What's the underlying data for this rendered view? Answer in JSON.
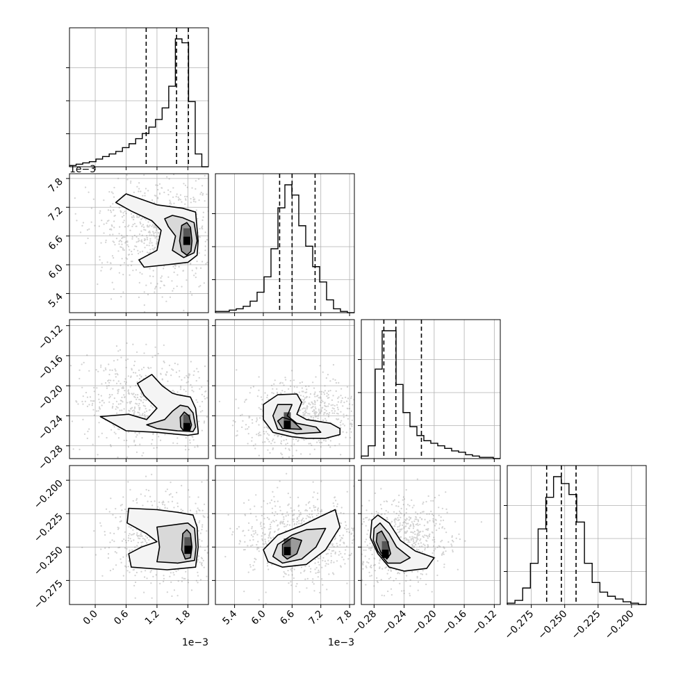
{
  "chart_data": {
    "type": "corner",
    "grid": true,
    "style": {
      "line_color": "#000000",
      "grid_color": "#b0b0b0",
      "scatter_color": "#7f7f7f",
      "quantile_line": "dashed"
    },
    "parameters": [
      {
        "index": 0,
        "range": [
          -0.0005,
          0.0022
        ],
        "ticks": [
          0.0,
          0.6,
          1.2,
          1.8
        ],
        "tick_labels": [
          "0.0",
          "0.6",
          "1.2",
          "1.8"
        ],
        "scale": 0.001,
        "offset_text": "1e−3",
        "quantiles": [
          0.00099,
          0.00158,
          0.00181
        ],
        "histogram": [
          1,
          2,
          3,
          4,
          6,
          8,
          10,
          12,
          15,
          18,
          22,
          26,
          31,
          37,
          46,
          63,
          100,
          97,
          51,
          10,
          0
        ]
      },
      {
        "index": 1,
        "range": [
          0.005,
          0.0079
        ],
        "ticks": [
          5.4,
          6.0,
          6.6,
          7.2,
          7.8
        ],
        "tick_labels": [
          "5.4",
          "6.0",
          "6.6",
          "7.2",
          "7.8"
        ],
        "scale": 0.001,
        "offset_text": "1e−3",
        "quantiles": [
          0.00634,
          0.0066,
          0.00708
        ],
        "histogram": [
          1,
          1,
          2,
          3,
          5,
          9,
          16,
          28,
          50,
          82,
          100,
          92,
          68,
          52,
          36,
          24,
          10,
          3,
          1,
          0
        ]
      },
      {
        "index": 2,
        "range": [
          -0.297,
          -0.112
        ],
        "ticks": [
          -0.28,
          -0.24,
          -0.2,
          -0.16,
          -0.12
        ],
        "tick_labels": [
          "−0.28",
          "−0.24",
          "−0.20",
          "−0.16",
          "−0.12"
        ],
        "scale": 1,
        "offset_text": "",
        "quantiles": [
          -0.267,
          -0.251,
          -0.217
        ],
        "histogram": [
          2,
          10,
          70,
          100,
          100,
          58,
          36,
          25,
          18,
          14,
          12,
          10,
          8,
          6,
          5,
          3,
          2,
          1,
          1,
          0
        ]
      },
      {
        "index": 3,
        "range": [
          -0.293,
          -0.189
        ],
        "ticks": [
          -0.275,
          -0.25,
          -0.225,
          -0.2
        ],
        "tick_labels": [
          "−0.275",
          "−0.250",
          "−0.225",
          "−0.200"
        ],
        "scale": 1,
        "offset_text": "",
        "quantiles": [
          -0.2635,
          -0.2525,
          -0.2415
        ],
        "histogram": [
          1,
          3,
          12,
          30,
          55,
          78,
          93,
          88,
          80,
          60,
          30,
          16,
          9,
          6,
          4,
          2,
          1,
          0
        ]
      }
    ],
    "pairs": [
      {
        "row": 1,
        "col": 0,
        "mean": [
          0.0017,
          0.0066
        ],
        "peak": [
          0.00178,
          0.0065
        ],
        "contours": [
          [
            [
              0.002,
              0.0065
            ],
            [
              0.00195,
              0.0071
            ],
            [
              0.0017,
              0.00718
            ],
            [
              0.0012,
              0.00725
            ],
            [
              0.0006,
              0.00748
            ],
            [
              0.0004,
              0.0073
            ],
            [
              0.0007,
              0.00712
            ],
            [
              0.0011,
              0.00692
            ],
            [
              0.00128,
              0.00672
            ],
            [
              0.0012,
              0.0063
            ],
            [
              0.00085,
              0.0061
            ],
            [
              0.00095,
              0.00595
            ],
            [
              0.0014,
              0.006
            ],
            [
              0.0018,
              0.00605
            ],
            [
              0.00198,
              0.0062
            ]
          ],
          [
            [
              0.00198,
              0.0065
            ],
            [
              0.00192,
              0.00688
            ],
            [
              0.0017,
              0.00698
            ],
            [
              0.0015,
              0.00703
            ],
            [
              0.00135,
              0.00696
            ],
            [
              0.00142,
              0.0068
            ],
            [
              0.00156,
              0.0066
            ],
            [
              0.0015,
              0.0063
            ],
            [
              0.00172,
              0.00615
            ],
            [
              0.00192,
              0.00625
            ]
          ],
          [
            [
              0.00188,
              0.0065
            ],
            [
              0.00185,
              0.00678
            ],
            [
              0.00178,
              0.00688
            ],
            [
              0.00168,
              0.00682
            ],
            [
              0.00164,
              0.0065
            ],
            [
              0.00168,
              0.00628
            ],
            [
              0.00178,
              0.0062
            ],
            [
              0.00186,
              0.00628
            ]
          ]
        ]
      },
      {
        "row": 2,
        "col": 0,
        "mean": [
          0.0018,
          -0.25
        ],
        "peak": [
          0.00178,
          -0.255
        ],
        "contours": [
          [
            [
              0.002,
              -0.26
            ],
            [
              0.00195,
              -0.23
            ],
            [
              0.00185,
              -0.215
            ],
            [
              0.0016,
              -0.212
            ],
            [
              0.0015,
              -0.21
            ],
            [
              0.0013,
              -0.2
            ],
            [
              0.0011,
              -0.185
            ],
            [
              0.00082,
              -0.197
            ],
            [
              0.00095,
              -0.213
            ],
            [
              0.0012,
              -0.23
            ],
            [
              0.001,
              -0.245
            ],
            [
              0.00065,
              -0.238
            ],
            [
              0.0001,
              -0.241
            ],
            [
              0.0006,
              -0.26
            ],
            [
              0.0012,
              -0.262
            ],
            [
              0.0018,
              -0.266
            ],
            [
              0.002,
              -0.264
            ]
          ],
          [
            [
              0.00195,
              -0.255
            ],
            [
              0.0019,
              -0.236
            ],
            [
              0.0018,
              -0.228
            ],
            [
              0.00165,
              -0.226
            ],
            [
              0.0015,
              -0.234
            ],
            [
              0.00135,
              -0.245
            ],
            [
              0.001,
              -0.252
            ],
            [
              0.0012,
              -0.257
            ],
            [
              0.0016,
              -0.26
            ],
            [
              0.0019,
              -0.261
            ]
          ],
          [
            [
              0.00187,
              -0.252
            ],
            [
              0.00182,
              -0.24
            ],
            [
              0.00173,
              -0.235
            ],
            [
              0.00165,
              -0.242
            ],
            [
              0.00166,
              -0.255
            ],
            [
              0.00172,
              -0.26
            ],
            [
              0.00184,
              -0.259
            ]
          ]
        ]
      },
      {
        "row": 2,
        "col": 1,
        "mean": [
          0.0066,
          -0.245
        ],
        "peak": [
          0.0065,
          -0.252
        ],
        "contours": [
          [
            [
              0.0076,
              -0.265
            ],
            [
              0.0073,
              -0.27
            ],
            [
              0.0069,
              -0.27
            ],
            [
              0.0066,
              -0.268
            ],
            [
              0.0062,
              -0.262
            ],
            [
              0.006,
              -0.245
            ],
            [
              0.006,
              -0.225
            ],
            [
              0.0063,
              -0.212
            ],
            [
              0.0067,
              -0.211
            ],
            [
              0.0068,
              -0.222
            ],
            [
              0.0067,
              -0.238
            ],
            [
              0.0069,
              -0.245
            ],
            [
              0.0074,
              -0.25
            ],
            [
              0.0076,
              -0.257
            ]
          ],
          [
            [
              0.0072,
              -0.262
            ],
            [
              0.0067,
              -0.264
            ],
            [
              0.0063,
              -0.258
            ],
            [
              0.0062,
              -0.24
            ],
            [
              0.0063,
              -0.225
            ],
            [
              0.0066,
              -0.225
            ],
            [
              0.0065,
              -0.24
            ],
            [
              0.0067,
              -0.25
            ],
            [
              0.0071,
              -0.255
            ]
          ],
          [
            [
              0.0068,
              -0.258
            ],
            [
              0.0064,
              -0.257
            ],
            [
              0.0063,
              -0.247
            ],
            [
              0.0064,
              -0.242
            ],
            [
              0.0066,
              -0.246
            ],
            [
              0.0067,
              -0.252
            ]
          ]
        ]
      },
      {
        "row": 3,
        "col": 0,
        "mean": [
          0.0017,
          -0.25
        ],
        "peak": [
          0.0018,
          -0.252
        ],
        "contours": [
          [
            [
              0.002,
              -0.25
            ],
            [
              0.00198,
              -0.235
            ],
            [
              0.0019,
              -0.226
            ],
            [
              0.0016,
              -0.224
            ],
            [
              0.0012,
              -0.222
            ],
            [
              0.00065,
              -0.221
            ],
            [
              0.00062,
              -0.232
            ],
            [
              0.001,
              -0.24
            ],
            [
              0.0012,
              -0.246
            ],
            [
              0.0009,
              -0.25
            ],
            [
              0.00065,
              -0.255
            ],
            [
              0.0007,
              -0.265
            ],
            [
              0.0014,
              -0.267
            ],
            [
              0.00195,
              -0.265
            ]
          ],
          [
            [
              0.00196,
              -0.25
            ],
            [
              0.00193,
              -0.236
            ],
            [
              0.0018,
              -0.232
            ],
            [
              0.0016,
              -0.233
            ],
            [
              0.0012,
              -0.235
            ],
            [
              0.00125,
              -0.25
            ],
            [
              0.0012,
              -0.261
            ],
            [
              0.0016,
              -0.262
            ],
            [
              0.00193,
              -0.26
            ]
          ],
          [
            [
              0.00188,
              -0.25
            ],
            [
              0.00185,
              -0.24
            ],
            [
              0.00178,
              -0.237
            ],
            [
              0.0017,
              -0.24
            ],
            [
              0.00168,
              -0.252
            ],
            [
              0.00175,
              -0.259
            ],
            [
              0.00185,
              -0.258
            ]
          ]
        ]
      },
      {
        "row": 3,
        "col": 1,
        "mean": [
          0.0066,
          -0.25
        ],
        "peak": [
          0.0065,
          -0.253
        ],
        "contours": [
          [
            [
              0.0064,
              -0.265
            ],
            [
              0.0069,
              -0.263
            ],
            [
              0.0073,
              -0.252
            ],
            [
              0.0076,
              -0.235
            ],
            [
              0.0075,
              -0.222
            ],
            [
              0.0072,
              -0.227
            ],
            [
              0.0068,
              -0.234
            ],
            [
              0.0063,
              -0.241
            ],
            [
              0.006,
              -0.252
            ],
            [
              0.0061,
              -0.261
            ]
          ],
          [
            [
              0.0064,
              -0.262
            ],
            [
              0.0068,
              -0.259
            ],
            [
              0.0071,
              -0.25
            ],
            [
              0.0073,
              -0.236
            ],
            [
              0.0069,
              -0.237
            ],
            [
              0.0066,
              -0.241
            ],
            [
              0.0063,
              -0.248
            ],
            [
              0.0062,
              -0.257
            ]
          ],
          [
            [
              0.0065,
              -0.259
            ],
            [
              0.0067,
              -0.255
            ],
            [
              0.0068,
              -0.245
            ],
            [
              0.0066,
              -0.243
            ],
            [
              0.0064,
              -0.248
            ],
            [
              0.0064,
              -0.256
            ]
          ]
        ]
      },
      {
        "row": 3,
        "col": 2,
        "mean": [
          -0.255,
          -0.248
        ],
        "peak": [
          -0.265,
          -0.255
        ],
        "contours": [
          [
            [
              -0.283,
              -0.23
            ],
            [
              -0.275,
              -0.226
            ],
            [
              -0.26,
              -0.232
            ],
            [
              -0.245,
              -0.245
            ],
            [
              -0.225,
              -0.253
            ],
            [
              -0.2,
              -0.258
            ],
            [
              -0.21,
              -0.266
            ],
            [
              -0.24,
              -0.268
            ],
            [
              -0.26,
              -0.265
            ],
            [
              -0.275,
              -0.255
            ],
            [
              -0.285,
              -0.243
            ]
          ],
          [
            [
              -0.28,
              -0.236
            ],
            [
              -0.272,
              -0.232
            ],
            [
              -0.26,
              -0.24
            ],
            [
              -0.25,
              -0.25
            ],
            [
              -0.232,
              -0.258
            ],
            [
              -0.245,
              -0.262
            ],
            [
              -0.262,
              -0.262
            ],
            [
              -0.275,
              -0.253
            ],
            [
              -0.281,
              -0.245
            ]
          ],
          [
            [
              -0.276,
              -0.24
            ],
            [
              -0.27,
              -0.238
            ],
            [
              -0.262,
              -0.246
            ],
            [
              -0.258,
              -0.255
            ],
            [
              -0.263,
              -0.259
            ],
            [
              -0.271,
              -0.254
            ],
            [
              -0.277,
              -0.246
            ]
          ]
        ]
      }
    ]
  }
}
